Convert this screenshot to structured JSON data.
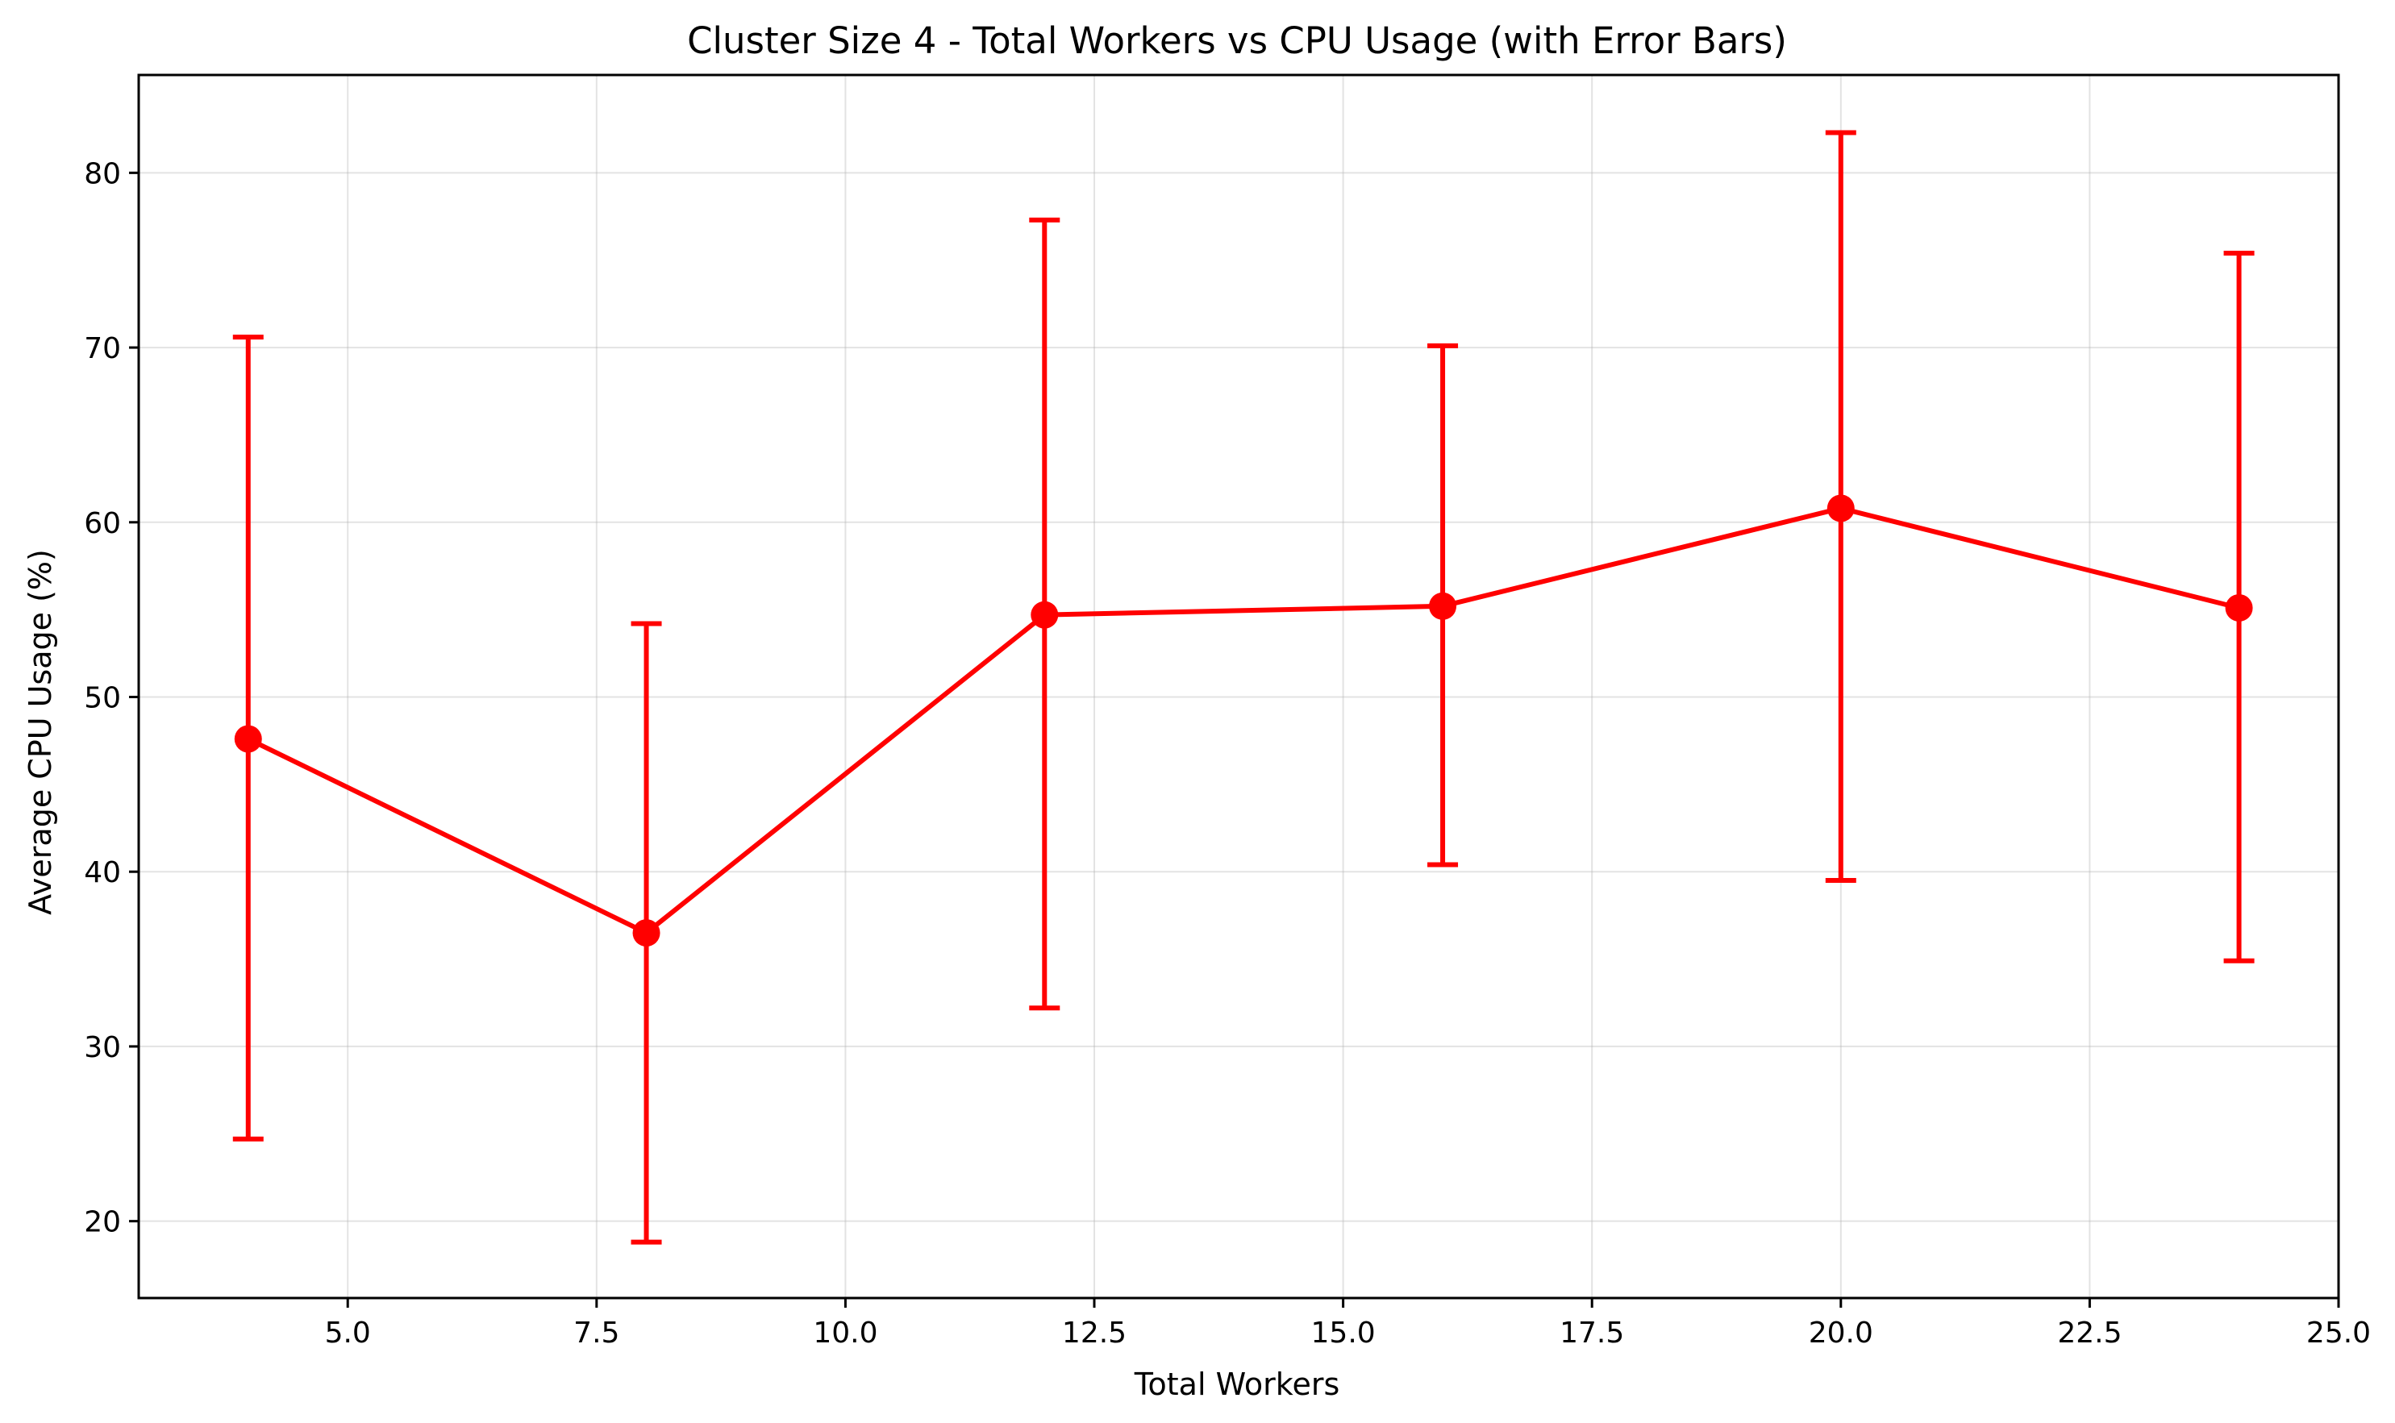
{
  "chart_data": {
    "type": "line",
    "title": "Cluster Size 4 - Total Workers vs CPU Usage (with Error Bars)",
    "xlabel": "Total Workers",
    "ylabel": "Average CPU Usage (%)",
    "xlim": [
      2.9,
      25.0
    ],
    "ylim": [
      15.6,
      85.6
    ],
    "grid": true,
    "color": "#ff0000",
    "x_ticks": [
      5.0,
      7.5,
      10.0,
      12.5,
      15.0,
      17.5,
      20.0,
      22.5,
      25.0
    ],
    "x_tick_labels": [
      "5.0",
      "7.5",
      "10.0",
      "12.5",
      "15.0",
      "17.5",
      "20.0",
      "22.5",
      "25.0"
    ],
    "y_ticks": [
      20,
      30,
      40,
      50,
      60,
      70,
      80
    ],
    "y_tick_labels": [
      "20",
      "30",
      "40",
      "50",
      "60",
      "70",
      "80"
    ],
    "series": [
      {
        "x": [
          4,
          8,
          12,
          16,
          20,
          24
        ],
        "y": [
          47.6,
          36.5,
          54.7,
          55.2,
          60.8,
          55.1
        ],
        "yerr_low": [
          24.7,
          18.8,
          32.2,
          40.4,
          39.5,
          34.9
        ],
        "yerr_high": [
          70.6,
          54.2,
          77.3,
          70.1,
          82.3,
          75.4
        ]
      }
    ]
  }
}
